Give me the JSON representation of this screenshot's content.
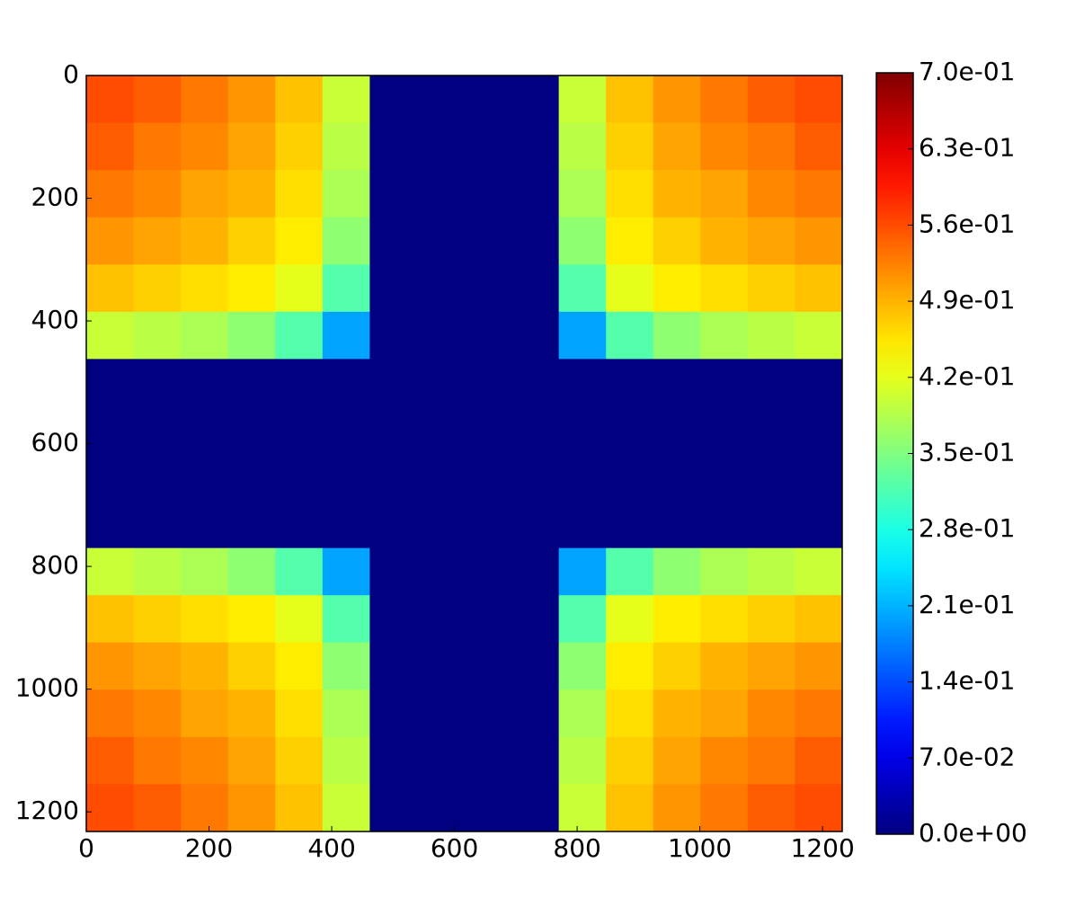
{
  "chart_data": {
    "type": "heatmap",
    "colormap": "jet",
    "xlim": [
      0,
      1232
    ],
    "ylim": [
      0,
      1232
    ],
    "y_inverted": true,
    "xticks": [
      0,
      200,
      400,
      600,
      800,
      1000,
      1200
    ],
    "yticks": [
      0,
      200,
      400,
      600,
      800,
      1000,
      1200
    ],
    "clim": [
      0,
      0.7
    ],
    "cticks": [
      {
        "value": 0,
        "label": "0.0e+00"
      },
      {
        "value": 0.07,
        "label": "7.0e-02"
      },
      {
        "value": 0.14,
        "label": "1.4e-01"
      },
      {
        "value": 0.21,
        "label": "2.1e-01"
      },
      {
        "value": 0.28,
        "label": "2.8e-01"
      },
      {
        "value": 0.35,
        "label": "3.5e-01"
      },
      {
        "value": 0.42,
        "label": "4.2e-01"
      },
      {
        "value": 0.49,
        "label": "4.9e-01"
      },
      {
        "value": 0.56,
        "label": "5.6e-01"
      },
      {
        "value": 0.63,
        "label": "6.3e-01"
      },
      {
        "value": 0.7,
        "label": "7.0e-01"
      }
    ],
    "values": [
      [
        0.56,
        0.55,
        0.53,
        0.51,
        0.48,
        0.4,
        0,
        0,
        0,
        0,
        0.4,
        0.48,
        0.51,
        0.53,
        0.55,
        0.56
      ],
      [
        0.55,
        0.53,
        0.52,
        0.5,
        0.47,
        0.39,
        0,
        0,
        0,
        0,
        0.39,
        0.47,
        0.5,
        0.52,
        0.53,
        0.55
      ],
      [
        0.53,
        0.52,
        0.5,
        0.49,
        0.46,
        0.38,
        0,
        0,
        0,
        0,
        0.38,
        0.46,
        0.49,
        0.5,
        0.52,
        0.53
      ],
      [
        0.51,
        0.5,
        0.49,
        0.47,
        0.45,
        0.36,
        0,
        0,
        0,
        0,
        0.36,
        0.45,
        0.47,
        0.49,
        0.5,
        0.51
      ],
      [
        0.48,
        0.47,
        0.46,
        0.45,
        0.42,
        0.32,
        0,
        0,
        0,
        0,
        0.32,
        0.42,
        0.45,
        0.46,
        0.47,
        0.48
      ],
      [
        0.4,
        0.39,
        0.38,
        0.36,
        0.32,
        0.2,
        0,
        0,
        0,
        0,
        0.2,
        0.32,
        0.36,
        0.38,
        0.39,
        0.4
      ],
      [
        0,
        0,
        0,
        0,
        0,
        0,
        0,
        0,
        0,
        0,
        0,
        0,
        0,
        0,
        0,
        0
      ],
      [
        0,
        0,
        0,
        0,
        0,
        0,
        0,
        0,
        0,
        0,
        0,
        0,
        0,
        0,
        0,
        0
      ],
      [
        0,
        0,
        0,
        0,
        0,
        0,
        0,
        0,
        0,
        0,
        0,
        0,
        0,
        0,
        0,
        0
      ],
      [
        0,
        0,
        0,
        0,
        0,
        0,
        0,
        0,
        0,
        0,
        0,
        0,
        0,
        0,
        0,
        0
      ],
      [
        0.4,
        0.39,
        0.38,
        0.36,
        0.32,
        0.2,
        0,
        0,
        0,
        0,
        0.2,
        0.32,
        0.36,
        0.38,
        0.39,
        0.4
      ],
      [
        0.48,
        0.47,
        0.46,
        0.45,
        0.42,
        0.32,
        0,
        0,
        0,
        0,
        0.32,
        0.42,
        0.45,
        0.46,
        0.47,
        0.48
      ],
      [
        0.51,
        0.5,
        0.49,
        0.47,
        0.45,
        0.36,
        0,
        0,
        0,
        0,
        0.36,
        0.45,
        0.47,
        0.49,
        0.5,
        0.51
      ],
      [
        0.53,
        0.52,
        0.5,
        0.49,
        0.46,
        0.38,
        0,
        0,
        0,
        0,
        0.38,
        0.46,
        0.49,
        0.5,
        0.52,
        0.53
      ],
      [
        0.55,
        0.53,
        0.52,
        0.5,
        0.47,
        0.39,
        0,
        0,
        0,
        0,
        0.39,
        0.47,
        0.5,
        0.52,
        0.53,
        0.55
      ],
      [
        0.56,
        0.55,
        0.53,
        0.51,
        0.48,
        0.4,
        0,
        0,
        0,
        0,
        0.4,
        0.48,
        0.51,
        0.53,
        0.55,
        0.56
      ]
    ]
  }
}
